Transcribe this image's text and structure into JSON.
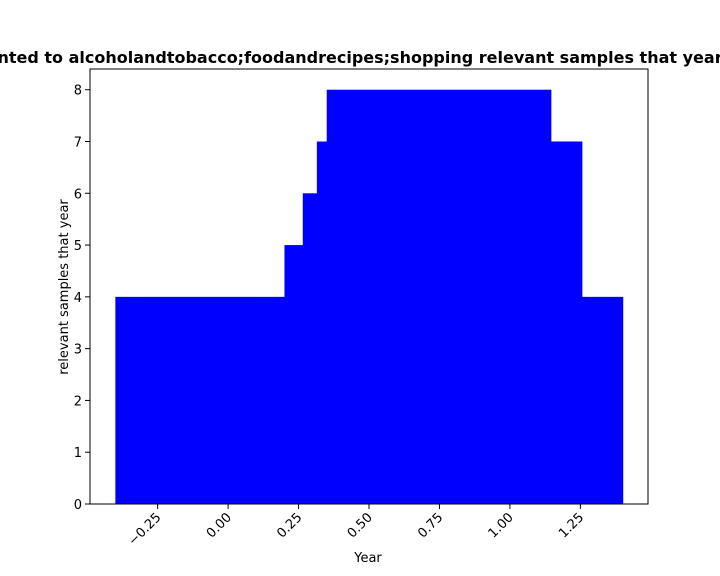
{
  "chart_data": {
    "type": "bar",
    "title": "nted to alcoholandtobacco;foodandrecipes;shopping relevant samples that year",
    "xlabel": "Year",
    "ylabel": "relevant samples that year",
    "xlim": [
      -0.49,
      1.49
    ],
    "ylim": [
      0,
      8.4
    ],
    "grid": false,
    "legend": "none",
    "color": "#0000ff",
    "x_ticks": [
      -0.25,
      0.0,
      0.25,
      0.5,
      0.75,
      1.0,
      1.25
    ],
    "x_tick_labels": [
      "−0.25",
      "0.00",
      "0.25",
      "0.50",
      "0.75",
      "1.00",
      "1.25"
    ],
    "y_ticks": [
      0,
      1,
      2,
      3,
      4,
      5,
      6,
      7,
      8
    ],
    "y_tick_labels": [
      "0",
      "1",
      "2",
      "3",
      "4",
      "5",
      "6",
      "7",
      "8"
    ],
    "steps": [
      {
        "x0": -0.4,
        "x1": 0.2,
        "value": 4
      },
      {
        "x0": 0.2,
        "x1": 0.265,
        "value": 5
      },
      {
        "x0": 0.265,
        "x1": 0.315,
        "value": 6
      },
      {
        "x0": 0.315,
        "x1": 0.35,
        "value": 7
      },
      {
        "x0": 0.35,
        "x1": 1.145,
        "value": 8
      },
      {
        "x0": 1.145,
        "x1": 1.255,
        "value": 7
      },
      {
        "x0": 1.255,
        "x1": 1.4,
        "value": 4
      }
    ]
  }
}
